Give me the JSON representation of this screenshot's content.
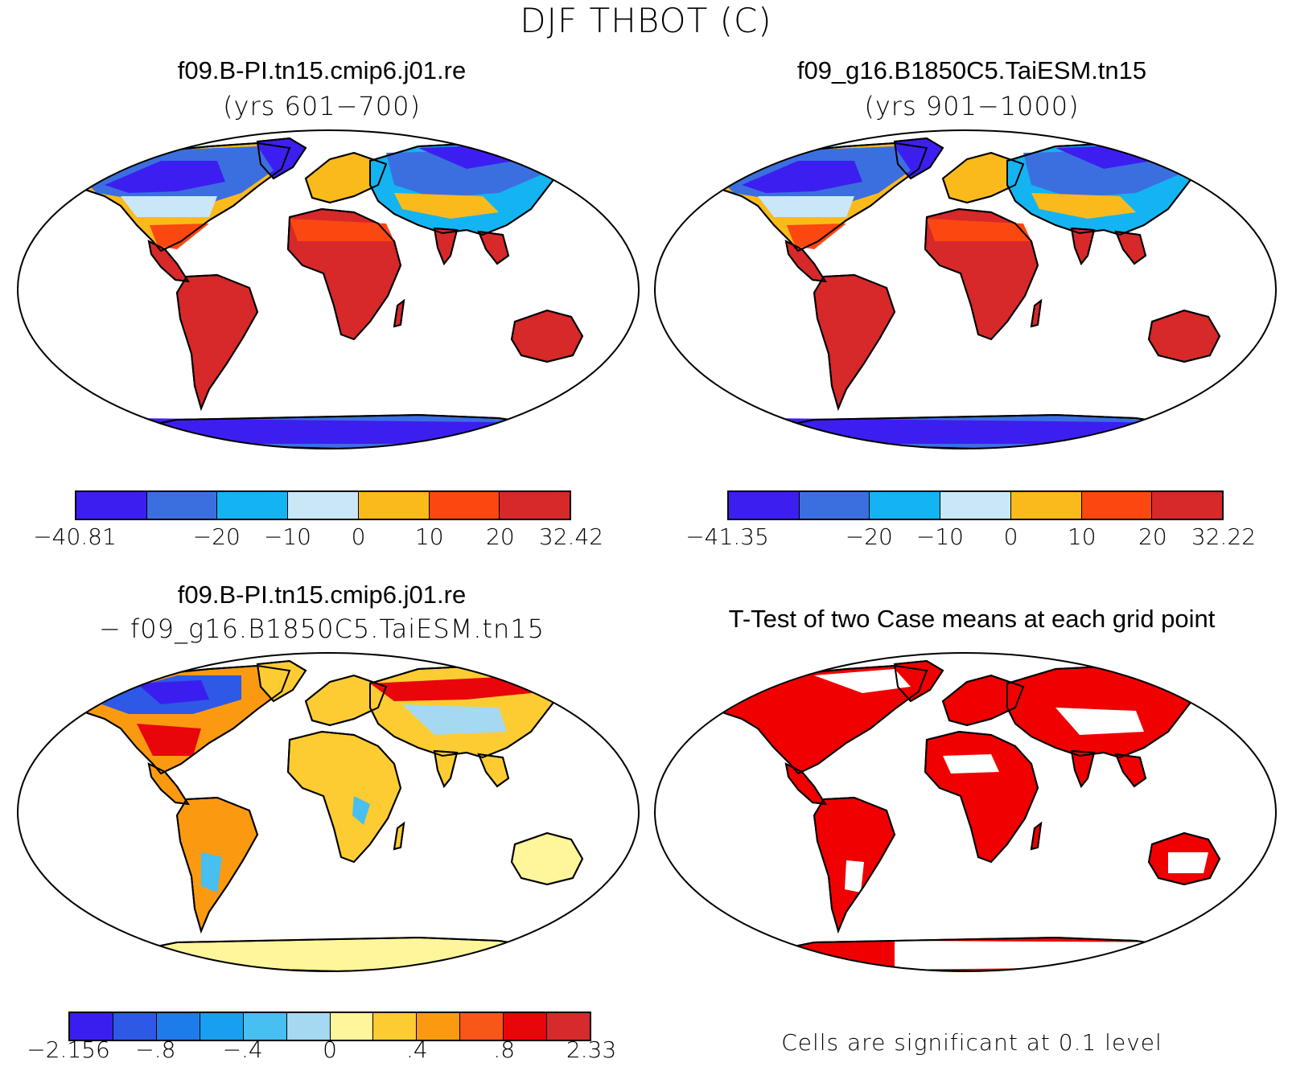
{
  "figure": {
    "title": "DJF THBOT (C)"
  },
  "panels": {
    "top_left": {
      "title": "f09.B-PI.tn15.cmip6.j01.re",
      "subtitle": "(yrs 601−700)",
      "colorbar": {
        "colors": [
          "#3c1ff0",
          "#3b6fe0",
          "#14b4f2",
          "#c9e7f7",
          "#fbba1c",
          "#fb4710",
          "#d7282a"
        ],
        "ticks": [
          "−40.81",
          "",
          "−20",
          "−10",
          "0",
          "10",
          "20",
          "32.42"
        ]
      }
    },
    "top_right": {
      "title": "f09_g16.B1850C5.TaiESM.tn15",
      "subtitle": "(yrs 901−1000)",
      "colorbar": {
        "colors": [
          "#3c1ff0",
          "#3b6fe0",
          "#14b4f2",
          "#c9e7f7",
          "#fbba1c",
          "#fb4710",
          "#d7282a"
        ],
        "ticks": [
          "−41.35",
          "",
          "−20",
          "−10",
          "0",
          "10",
          "20",
          "32.22"
        ]
      }
    },
    "bottom_left": {
      "title": "f09.B-PI.tn15.cmip6.j01.re",
      "subtitle": "− f09_g16.B1850C5.TaiESM.tn15",
      "colorbar": {
        "colors": [
          "#3a1ef0",
          "#2e58e6",
          "#1d7bea",
          "#199ff0",
          "#47bff0",
          "#a5d8f1",
          "#fff59a",
          "#fccc32",
          "#fb9a10",
          "#f9561a",
          "#e8060a",
          "#d72a2c"
        ],
        "ticks": [
          "−2.156",
          "−.8",
          "−.4",
          "0",
          ".4",
          ".8",
          "2.33"
        ]
      }
    },
    "bottom_right": {
      "title": "T-Test of two Case means at each grid point",
      "note": "Cells are significant at 0.1 level",
      "colors": {
        "significant": "#f00000",
        "ocean": "#ffffff"
      }
    }
  }
}
